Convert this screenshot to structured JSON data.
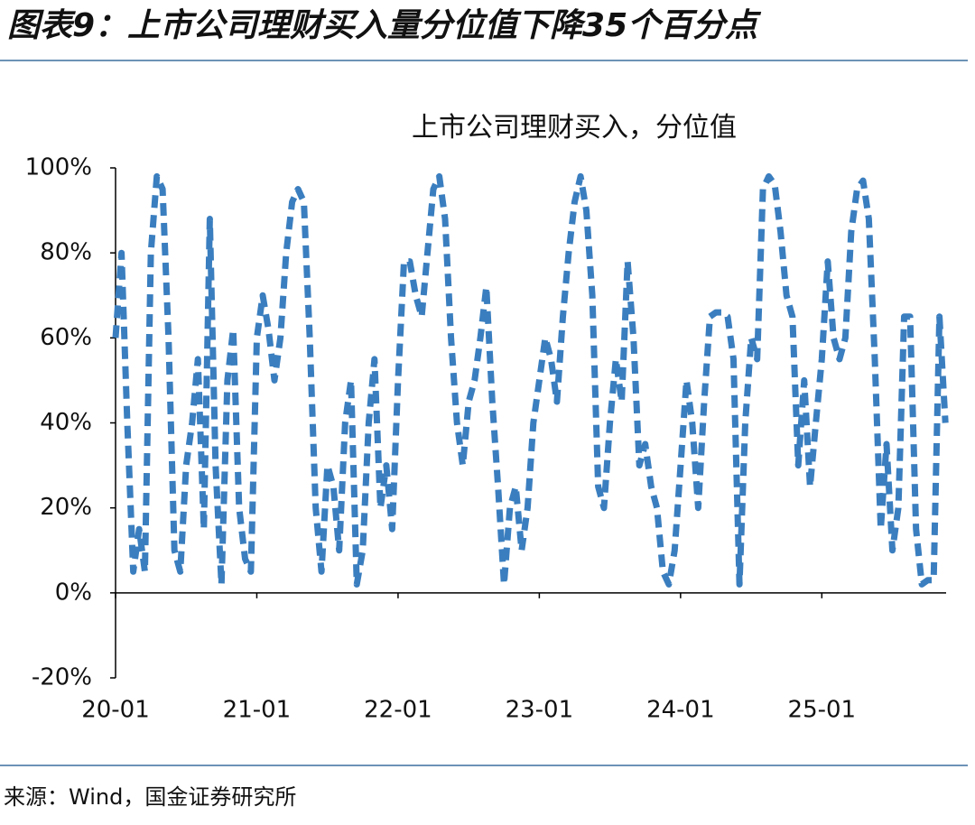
{
  "header": {
    "title": "图表9：上市公司理财买入量分位值下降35个百分点"
  },
  "chart_data": {
    "type": "line",
    "title": "上市公司理财买入，分位值",
    "color": "#3a7ebf",
    "x": [
      2020,
      2020.042,
      2020.083,
      2020.125,
      2020.167,
      2020.208,
      2020.25,
      2020.292,
      2020.333,
      2020.375,
      2020.417,
      2020.458,
      2020.5,
      2020.542,
      2020.583,
      2020.625,
      2020.667,
      2020.708,
      2020.75,
      2020.792,
      2020.833,
      2020.875,
      2020.917,
      2020.958,
      2021,
      2021.042,
      2021.083,
      2021.125,
      2021.167,
      2021.208,
      2021.25,
      2021.292,
      2021.333,
      2021.375,
      2021.417,
      2021.458,
      2021.5,
      2021.542,
      2021.583,
      2021.625,
      2021.667,
      2021.708,
      2021.75,
      2021.792,
      2021.833,
      2021.875,
      2021.917,
      2021.958,
      2022,
      2022.042,
      2022.083,
      2022.125,
      2022.167,
      2022.208,
      2022.25,
      2022.292,
      2022.333,
      2022.375,
      2022.417,
      2022.458,
      2022.5,
      2022.542,
      2022.583,
      2022.625,
      2022.667,
      2022.708,
      2022.75,
      2022.792,
      2022.833,
      2022.875,
      2022.917,
      2022.958,
      2023,
      2023.042,
      2023.083,
      2023.125,
      2023.167,
      2023.208,
      2023.25,
      2023.292,
      2023.333,
      2023.375,
      2023.417,
      2023.458,
      2023.5,
      2023.542,
      2023.583,
      2023.625,
      2023.667,
      2023.708,
      2023.75,
      2023.792,
      2023.833,
      2023.875,
      2023.917,
      2023.958,
      2024,
      2024.042,
      2024.083,
      2024.125,
      2024.167,
      2024.208,
      2024.25,
      2024.292,
      2024.333,
      2024.375,
      2024.417,
      2024.458,
      2024.5,
      2024.542,
      2024.583,
      2024.625,
      2024.667,
      2024.708,
      2024.75,
      2024.792,
      2024.833,
      2024.875,
      2024.917,
      2024.958,
      2025,
      2025.042,
      2025.083,
      2025.125,
      2025.167,
      2025.208,
      2025.25,
      2025.292,
      2025.333,
      2025.375,
      2025.417,
      2025.458,
      2025.5,
      2025.542,
      2025.583,
      2025.625,
      2025.667,
      2025.708,
      2025.75,
      2025.792,
      2025.833,
      2025.875
    ],
    "values": [
      60,
      80,
      40,
      5,
      15,
      5,
      80,
      98,
      95,
      60,
      10,
      5,
      30,
      40,
      55,
      15,
      88,
      30,
      2,
      50,
      62,
      20,
      8,
      5,
      60,
      70,
      62,
      50,
      60,
      80,
      92,
      95,
      92,
      60,
      20,
      5,
      30,
      25,
      10,
      40,
      50,
      2,
      10,
      40,
      55,
      20,
      30,
      15,
      50,
      78,
      78,
      70,
      65,
      80,
      95,
      98,
      88,
      60,
      40,
      30,
      45,
      50,
      60,
      72,
      45,
      25,
      2,
      20,
      25,
      10,
      20,
      40,
      50,
      60,
      55,
      45,
      65,
      80,
      92,
      98,
      90,
      70,
      25,
      20,
      40,
      55,
      45,
      78,
      60,
      30,
      35,
      25,
      20,
      5,
      2,
      10,
      30,
      50,
      40,
      20,
      45,
      65,
      66,
      66,
      65,
      55,
      2,
      40,
      60,
      55,
      95,
      98,
      96,
      85,
      70,
      65,
      30,
      50,
      25,
      40,
      55,
      78,
      60,
      55,
      60,
      85,
      95,
      97,
      88,
      55,
      15,
      35,
      10,
      20,
      65,
      65,
      15,
      2,
      3,
      3,
      65,
      40
    ],
    "xlim": [
      2020,
      2025.88
    ],
    "xticks": [
      {
        "value": 2020,
        "label": "20-01"
      },
      {
        "value": 2021,
        "label": "21-01"
      },
      {
        "value": 2022,
        "label": "22-01"
      },
      {
        "value": 2023,
        "label": "23-01"
      },
      {
        "value": 2024,
        "label": "24-01"
      },
      {
        "value": 2025,
        "label": "25-01"
      }
    ],
    "ylim": [
      -20,
      100
    ],
    "yticks": [
      {
        "value": -20,
        "label": "-20%"
      },
      {
        "value": 0,
        "label": "0%"
      },
      {
        "value": 20,
        "label": "20%"
      },
      {
        "value": 40,
        "label": "40%"
      },
      {
        "value": 60,
        "label": "60%"
      },
      {
        "value": 80,
        "label": "80%"
      },
      {
        "value": 100,
        "label": "100%"
      }
    ]
  },
  "footer": {
    "source": "来源：Wind，国金证券研究所"
  }
}
